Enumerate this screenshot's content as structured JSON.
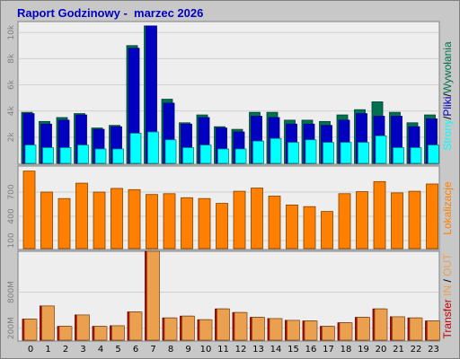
{
  "title": {
    "report": "Raport Godzinowy -",
    "month": "marzec 2026"
  },
  "colors": {
    "frame": "#c8c8c8",
    "panel": "#eeeeee",
    "hits": "#007050",
    "files": "#0000c0",
    "pages": "#00ffff",
    "sites": "#ff8000",
    "kbytes_in": "#c00000",
    "kbytes_out": "#eba050"
  },
  "chart_data": [
    {
      "type": "bar",
      "categories": [
        "0",
        "1",
        "2",
        "3",
        "4",
        "5",
        "6",
        "7",
        "8",
        "9",
        "10",
        "11",
        "12",
        "13",
        "14",
        "15",
        "16",
        "17",
        "18",
        "19",
        "20",
        "21",
        "22",
        "23"
      ],
      "y_ticks": [
        "2k",
        "4k",
        "6k",
        "8k",
        "10k"
      ],
      "ylim": [
        0,
        10700
      ],
      "legend": {
        "pages": "Strony",
        "files": "Pliki",
        "hits": "Wywołania"
      },
      "series": [
        {
          "name": "Wywołania",
          "values": [
            3900,
            3200,
            3500,
            3800,
            2700,
            2900,
            9000,
            10500,
            4900,
            3100,
            3700,
            2800,
            2600,
            3900,
            3900,
            3300,
            3300,
            3200,
            3700,
            4100,
            4700,
            3900,
            3100,
            3700
          ]
        },
        {
          "name": "Pliki",
          "values": [
            3800,
            3000,
            3300,
            3700,
            2600,
            2800,
            8800,
            10500,
            4600,
            3000,
            3500,
            2700,
            2400,
            3600,
            3500,
            3000,
            3000,
            2900,
            3300,
            3800,
            3600,
            3600,
            2800,
            3400
          ]
        },
        {
          "name": "Strony",
          "values": [
            1400,
            1200,
            1200,
            1400,
            1100,
            1100,
            2300,
            2400,
            1800,
            1200,
            1400,
            1100,
            1100,
            1700,
            1900,
            1600,
            1800,
            1600,
            1600,
            1600,
            2100,
            1200,
            1200,
            1400
          ]
        }
      ]
    },
    {
      "type": "bar",
      "categories": [
        "0",
        "1",
        "2",
        "3",
        "4",
        "5",
        "6",
        "7",
        "8",
        "9",
        "10",
        "11",
        "12",
        "13",
        "14",
        "15",
        "16",
        "17",
        "18",
        "19",
        "20",
        "21",
        "22",
        "23"
      ],
      "y_ticks": [
        "100",
        "400",
        "700"
      ],
      "ylim": [
        0,
        1000
      ],
      "legend": {
        "sites": "Lokalizacje"
      },
      "series": [
        {
          "name": "Lokalizacje",
          "values": [
            960,
            700,
            620,
            810,
            700,
            745,
            730,
            670,
            680,
            630,
            620,
            560,
            710,
            750,
            650,
            540,
            520,
            460,
            680,
            705,
            830,
            690,
            710,
            800
          ]
        }
      ]
    },
    {
      "type": "bar",
      "categories": [
        "0",
        "1",
        "2",
        "3",
        "4",
        "5",
        "6",
        "7",
        "8",
        "9",
        "10",
        "11",
        "12",
        "13",
        "14",
        "15",
        "16",
        "17",
        "18",
        "19",
        "20",
        "21",
        "22",
        "23"
      ],
      "y_ticks": [
        "200M",
        "800M"
      ],
      "ylim": [
        0,
        1450
      ],
      "legend": {
        "transfer": "Transfer",
        "in": "IN",
        "out": "OUT"
      },
      "series": [
        {
          "name": "IN",
          "values": [
            350,
            570,
            230,
            420,
            230,
            240,
            470,
            1480,
            370,
            400,
            340,
            520,
            460,
            380,
            360,
            330,
            320,
            230,
            290,
            380,
            520,
            390,
            370,
            320
          ]
        },
        {
          "name": "OUT",
          "values": [
            350,
            570,
            230,
            420,
            230,
            240,
            470,
            1480,
            370,
            400,
            340,
            520,
            460,
            380,
            360,
            330,
            320,
            230,
            290,
            380,
            520,
            390,
            370,
            320
          ]
        }
      ]
    }
  ]
}
